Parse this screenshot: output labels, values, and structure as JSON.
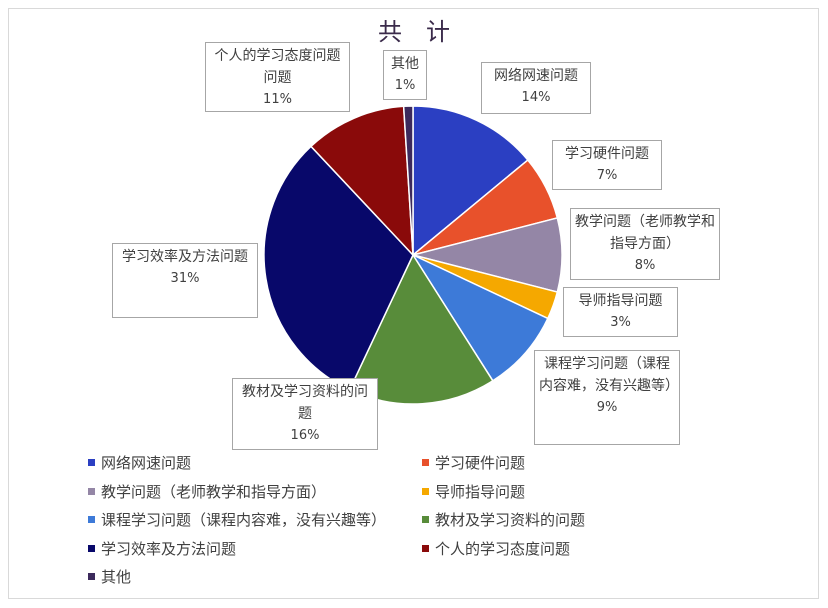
{
  "chart_data": {
    "type": "pie",
    "title": "共　计",
    "legend_position": "bottom",
    "slices": [
      {
        "name": "网络网速问题",
        "label": "网络网速问题",
        "value": 14,
        "display": "14%",
        "color": "#2b3fc2"
      },
      {
        "name": "学习硬件问题",
        "label": "学习硬件问题",
        "value": 7,
        "display": "7%",
        "color": "#e8512b"
      },
      {
        "name": "教学问题（老师教学和指导方面）",
        "label": "教学问题（老师教学和指导方面）",
        "value": 8,
        "display": "8%",
        "color": "#9486a6"
      },
      {
        "name": "导师指导问题",
        "label": "导师指导问题",
        "value": 3,
        "display": "3%",
        "color": "#f5a800"
      },
      {
        "name": "课程学习问题（课程内容难，没有兴趣等）",
        "label": "课程学习问题（课程内容难，没有兴趣等）",
        "value": 9,
        "display": "9%",
        "color": "#3d7ad8"
      },
      {
        "name": "教材及学习资料的问题",
        "label": "教材及学习资料的问题",
        "value": 16,
        "display": "16%",
        "color": "#588c3a"
      },
      {
        "name": "学习效率及方法问题",
        "label": "学习效率及方法问题",
        "value": 31,
        "display": "31%",
        "color": "#08086a"
      },
      {
        "name": "个人的学习态度问题",
        "label": "个人的学习态度问题问题",
        "value": 11,
        "display": "11%",
        "color": "#8a0a0a"
      },
      {
        "name": "其他",
        "label": "其他",
        "value": 1,
        "display": "1%",
        "color": "#3c2a5c"
      }
    ]
  }
}
